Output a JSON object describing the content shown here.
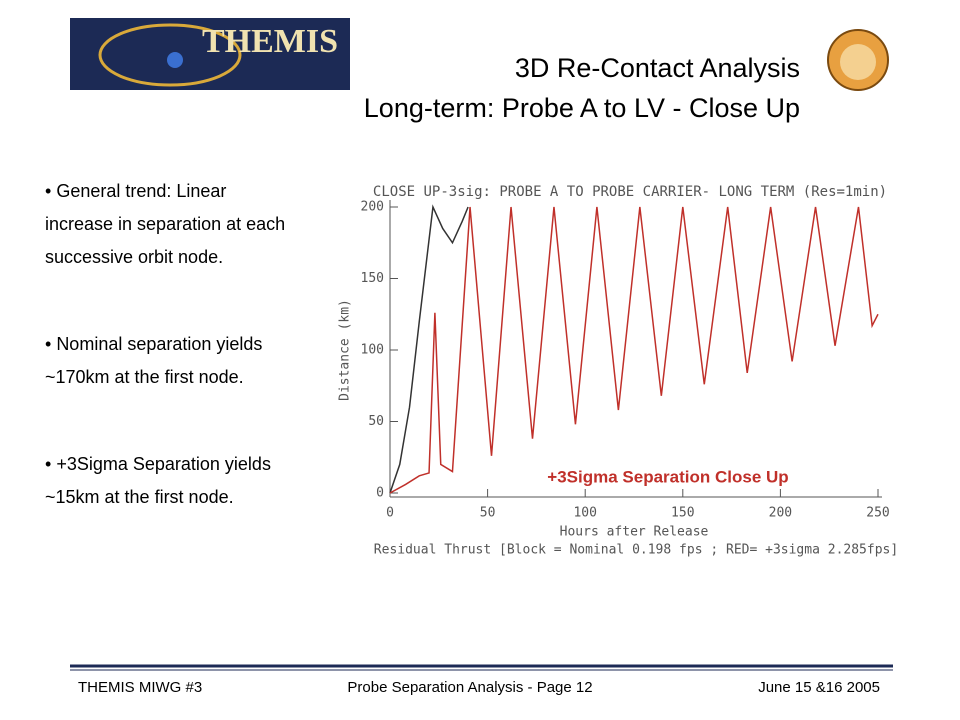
{
  "header": {
    "logo_text": "THEMIS",
    "title": "3D Re-Contact Analysis",
    "subtitle": "Long-term: Probe A to LV - Close Up"
  },
  "bullets": [
    "General trend: Linear increase in separation at each successive orbit node.",
    "Nominal separation yields ~170km at the first node.",
    "+3Sigma Separation yields ~15km at the first node."
  ],
  "chart_data": {
    "type": "line",
    "title": "CLOSE UP-3sig: PROBE A TO PROBE CARRIER- LONG TERM (Res=1min)",
    "x_label": "Hours after Release",
    "y_label": "Distance (km)",
    "caption": "Residual Thrust [Block = Nominal 0.198 fps ; RED= +3sigma 2.285fps]",
    "annotation": "+3Sigma Separation Close Up",
    "xlim": [
      0,
      250
    ],
    "ylim": [
      0,
      200
    ],
    "xticks": [
      0,
      50,
      100,
      150,
      200,
      250
    ],
    "yticks": [
      0,
      50,
      100,
      150,
      200
    ],
    "series": [
      {
        "name": "Nominal",
        "color": "#333333",
        "x": [
          0,
          5,
          10,
          15,
          22,
          27,
          32,
          37,
          40
        ],
        "values": [
          0,
          20,
          60,
          120,
          200,
          185,
          175,
          190,
          200
        ]
      },
      {
        "name": "+3sigma",
        "color": "#c0302a",
        "x": [
          0,
          8,
          15,
          20,
          23,
          26,
          32,
          41,
          52,
          62,
          73,
          84,
          95,
          106,
          117,
          128,
          139,
          150,
          161,
          173,
          183,
          195,
          206,
          218,
          228,
          240,
          247,
          250
        ],
        "values": [
          0,
          6,
          12,
          14,
          126,
          20,
          15,
          200,
          26,
          200,
          38,
          200,
          48,
          200,
          58,
          200,
          68,
          200,
          76,
          200,
          84,
          200,
          92,
          200,
          103,
          200,
          117,
          125
        ]
      }
    ]
  },
  "footer": {
    "left": "THEMIS MIWG #3",
    "center": "Probe Separation Analysis - Page 12",
    "right": "June 15 &16 2005"
  }
}
